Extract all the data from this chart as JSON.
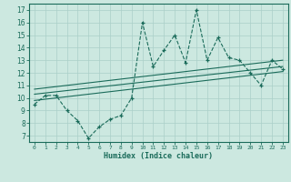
{
  "title": "",
  "xlabel": "Humidex (Indice chaleur)",
  "ylabel": "",
  "bg_color": "#cce8e0",
  "line_color": "#1a6b5a",
  "grid_color": "#aacfc8",
  "x_ticks": [
    0,
    1,
    2,
    3,
    4,
    5,
    6,
    7,
    8,
    9,
    10,
    11,
    12,
    13,
    14,
    15,
    16,
    17,
    18,
    19,
    20,
    21,
    22,
    23
  ],
  "y_ticks": [
    7,
    8,
    9,
    10,
    11,
    12,
    13,
    14,
    15,
    16,
    17
  ],
  "xlim": [
    -0.5,
    23.5
  ],
  "ylim": [
    6.5,
    17.5
  ],
  "series1_x": [
    0,
    1,
    2,
    3,
    4,
    5,
    6,
    7,
    8,
    9,
    10,
    11,
    12,
    13,
    14,
    15,
    16,
    17,
    18,
    19,
    20,
    21,
    22,
    23
  ],
  "series1_y": [
    9.5,
    10.2,
    10.2,
    9.0,
    8.2,
    6.8,
    7.7,
    8.3,
    8.6,
    10.0,
    16.0,
    12.5,
    13.8,
    15.0,
    12.8,
    17.0,
    13.0,
    14.8,
    13.2,
    13.0,
    12.0,
    11.0,
    13.0,
    12.3
  ],
  "line2_x0": 0,
  "line2_x1": 23,
  "line2_y0": 10.3,
  "line2_y1": 12.5,
  "line3_x0": 0,
  "line3_x1": 23,
  "line3_y0": 10.7,
  "line3_y1": 13.0,
  "line4_x0": 0,
  "line4_x1": 23,
  "line4_y0": 9.8,
  "line4_y1": 12.1
}
